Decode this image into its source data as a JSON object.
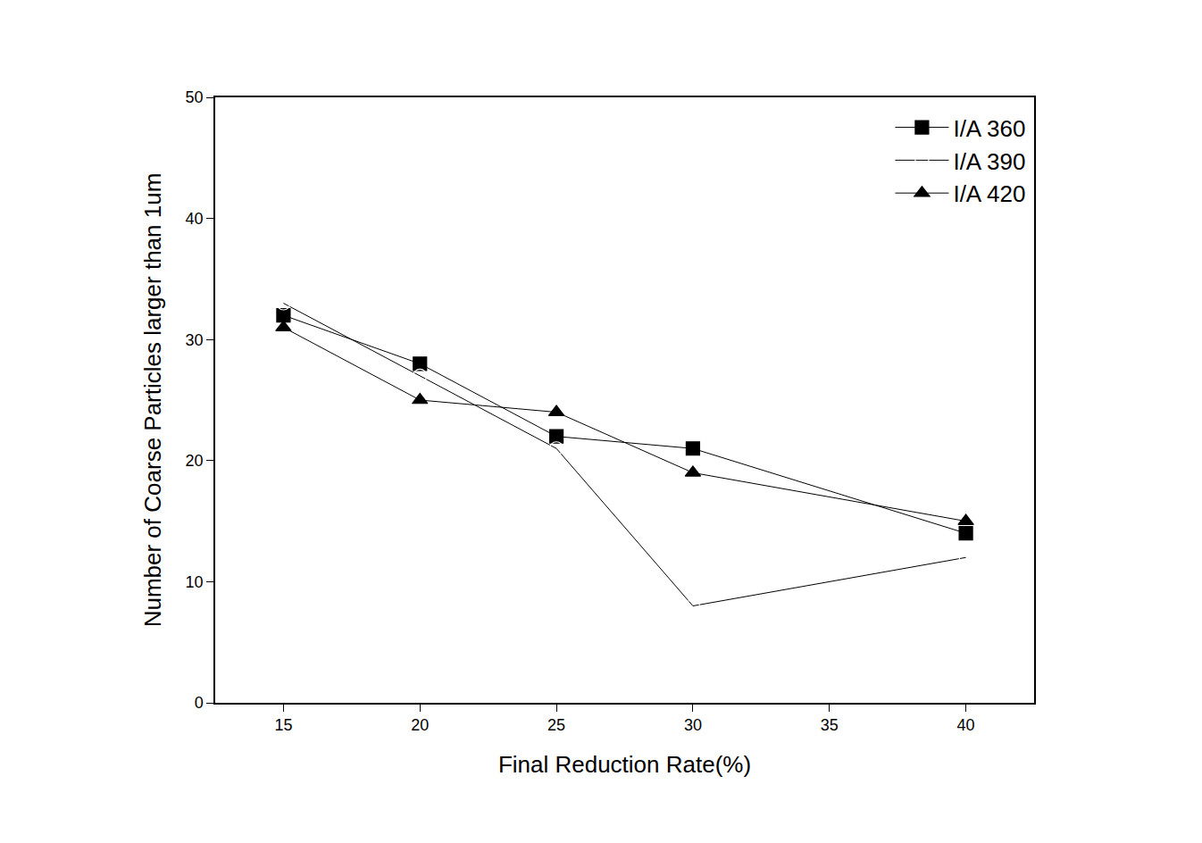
{
  "chart_data": {
    "type": "line",
    "x_label": "Final Reduction Rate(%)",
    "y_label": "Number of Coarse Particles larger than 1um",
    "x": [
      15,
      20,
      25,
      30,
      40
    ],
    "series": [
      {
        "name": "I/A 360",
        "color": "#000000",
        "marker": "square",
        "values": [
          32,
          28,
          22,
          21,
          14
        ]
      },
      {
        "name": "I/A 390",
        "color": "#000000",
        "marker": "circle-open",
        "values": [
          33,
          27,
          21,
          8,
          12
        ]
      },
      {
        "name": "I/A 420",
        "color": "#000000",
        "marker": "triangle",
        "values": [
          31,
          25,
          24,
          19,
          15
        ]
      }
    ],
    "xlim": [
      12.5,
      42.5
    ],
    "xticks": [
      15,
      20,
      25,
      30,
      35,
      40
    ],
    "ylim": [
      0,
      50
    ],
    "yticks": [
      0,
      10,
      20,
      30,
      40,
      50
    ],
    "grid": false,
    "legend": "top-right"
  }
}
